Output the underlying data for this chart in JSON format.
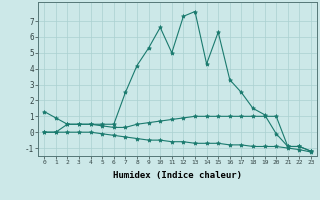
{
  "xlabel": "Humidex (Indice chaleur)",
  "x": [
    0,
    1,
    2,
    3,
    4,
    5,
    6,
    7,
    8,
    9,
    10,
    11,
    12,
    13,
    14,
    15,
    16,
    17,
    18,
    19,
    20,
    21,
    22,
    23
  ],
  "line1": [
    1.3,
    0.9,
    0.5,
    0.5,
    0.5,
    0.5,
    0.5,
    2.5,
    4.2,
    5.3,
    6.6,
    5.0,
    7.3,
    7.6,
    4.3,
    6.3,
    3.3,
    2.5,
    1.5,
    1.1,
    -0.1,
    -0.9,
    -0.9,
    -1.2
  ],
  "line2": [
    0.0,
    0.0,
    0.5,
    0.5,
    0.5,
    0.4,
    0.3,
    0.3,
    0.5,
    0.6,
    0.7,
    0.8,
    0.9,
    1.0,
    1.0,
    1.0,
    1.0,
    1.0,
    1.0,
    1.0,
    1.0,
    -0.9,
    -0.9,
    -1.2
  ],
  "line3": [
    0.0,
    0.0,
    0.0,
    0.0,
    0.0,
    -0.1,
    -0.2,
    -0.3,
    -0.4,
    -0.5,
    -0.5,
    -0.6,
    -0.6,
    -0.7,
    -0.7,
    -0.7,
    -0.8,
    -0.8,
    -0.9,
    -0.9,
    -0.9,
    -1.0,
    -1.1,
    -1.25
  ],
  "line_color": "#1a7a6e",
  "bg_color": "#cce8e8",
  "grid_color": "#aad0d0",
  "ylim": [
    -1.5,
    8.2
  ],
  "xlim": [
    -0.5,
    23.5
  ],
  "yticks": [
    -1,
    0,
    1,
    2,
    3,
    4,
    5,
    6,
    7
  ],
  "xticks": [
    0,
    1,
    2,
    3,
    4,
    5,
    6,
    7,
    8,
    9,
    10,
    11,
    12,
    13,
    14,
    15,
    16,
    17,
    18,
    19,
    20,
    21,
    22,
    23
  ],
  "marker": "*",
  "linewidth": 0.8,
  "markersize": 3.0
}
